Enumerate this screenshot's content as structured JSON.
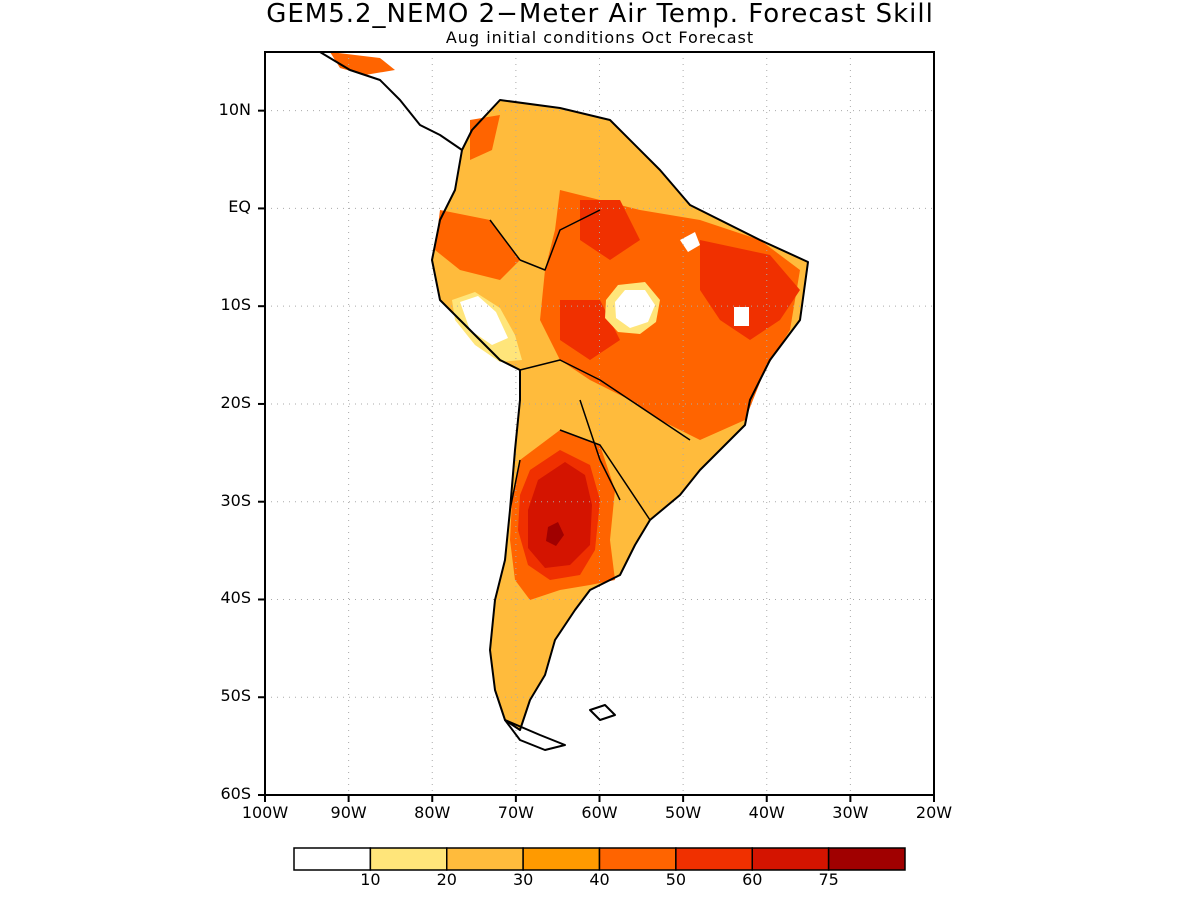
{
  "title": "GEM5.2_NEMO 2−Meter Air Temp. Forecast Skill",
  "subtitle": "Aug initial conditions  Oct Forecast",
  "lat_ticks": [
    {
      "label": "10N",
      "value": 10
    },
    {
      "label": "EQ",
      "value": 0
    },
    {
      "label": "10S",
      "value": -10
    },
    {
      "label": "20S",
      "value": -20
    },
    {
      "label": "30S",
      "value": -30
    },
    {
      "label": "40S",
      "value": -40
    },
    {
      "label": "50S",
      "value": -50
    },
    {
      "label": "60S",
      "value": -60
    }
  ],
  "lon_ticks": [
    {
      "label": "100W",
      "value": -100
    },
    {
      "label": "90W",
      "value": -90
    },
    {
      "label": "80W",
      "value": -80
    },
    {
      "label": "70W",
      "value": -70
    },
    {
      "label": "60W",
      "value": -60
    },
    {
      "label": "50W",
      "value": -50
    },
    {
      "label": "40W",
      "value": -40
    },
    {
      "label": "30W",
      "value": -30
    },
    {
      "label": "20W",
      "value": -20
    }
  ],
  "extent": {
    "lon_min": -100,
    "lon_max": -20,
    "lat_min": -60,
    "lat_max": 16
  },
  "colorbar": {
    "levels": [
      10,
      20,
      30,
      40,
      50,
      60,
      75
    ],
    "labels": [
      "10",
      "20",
      "30",
      "40",
      "50",
      "60",
      "75"
    ],
    "colors": [
      "#ffffff",
      "#ffe57a",
      "#ffbb3c",
      "#ff9a00",
      "#ff6400",
      "#f03000",
      "#d41400",
      "#a00000"
    ]
  }
}
